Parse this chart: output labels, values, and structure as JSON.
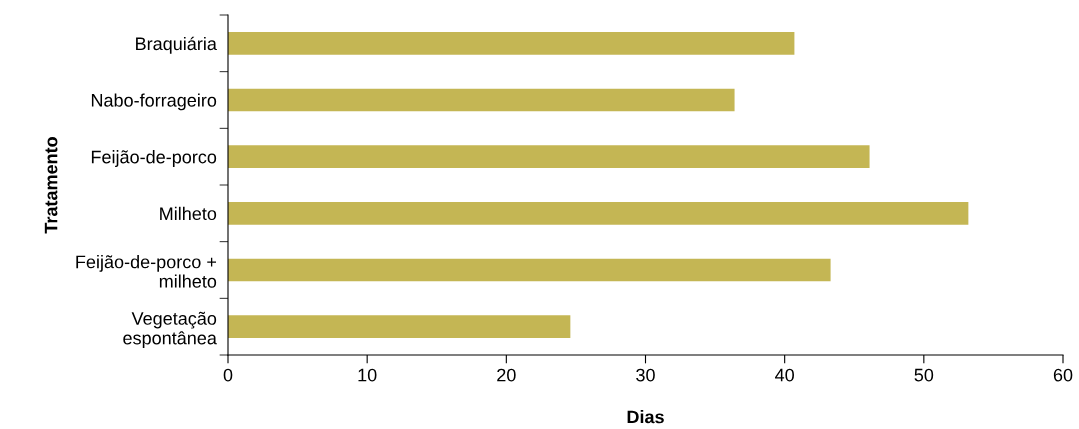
{
  "chart_data": {
    "type": "bar",
    "orientation": "horizontal",
    "xlabel": "Dias",
    "ylabel": "Tratamento",
    "categories": [
      "Braquiária",
      "Nabo-forrageiro",
      "Feijão-de-porco",
      "Milheto",
      "Feijão-de-porco +\nmilheto",
      "Vegetação\nespontânea"
    ],
    "values": [
      40.7,
      36.4,
      46.1,
      53.2,
      43.3,
      24.6
    ],
    "color": "#c4b654",
    "xlim": [
      0,
      60
    ],
    "xticks": [
      0,
      10,
      20,
      30,
      40,
      50,
      60
    ],
    "grid": false,
    "legend": false
  }
}
